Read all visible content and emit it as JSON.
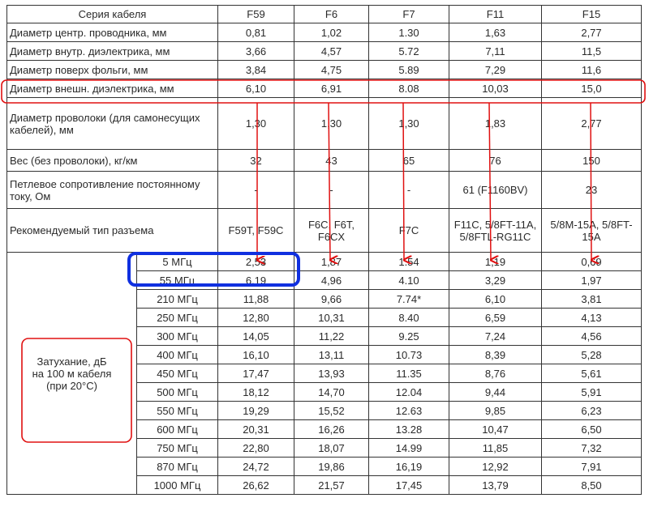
{
  "table": {
    "header": {
      "label": "Серия кабеля",
      "columns": [
        "F59",
        "F6",
        "F7",
        "F11",
        "F15"
      ]
    },
    "rows": [
      {
        "label": "Диаметр центр. проводника, мм",
        "values": [
          "0,81",
          "1,02",
          "1.30",
          "1,63",
          "2,77"
        ]
      },
      {
        "label": "Диаметр внутр. диэлектрика, мм",
        "values": [
          "3,66",
          "4,57",
          "5.72",
          "7,11",
          "11,5"
        ]
      },
      {
        "label": "Диаметр поверх фольги, мм",
        "values": [
          "3,84",
          "4,75",
          "5.89",
          "7,29",
          "11,6"
        ]
      },
      {
        "label": "Диаметр внешн. диэлектрика, мм",
        "values": [
          "6,10",
          "6,91",
          "8.08",
          "10,03",
          "15,0"
        ]
      },
      {
        "label": "Диаметр проволоки (для самонесущих кабелей), мм",
        "values": [
          "1,30",
          "1,30",
          "1,30",
          "1,83",
          "2,77"
        ]
      },
      {
        "label": "Вес (без проволоки), кг/км",
        "values": [
          "32",
          "43",
          "65",
          "76",
          "150"
        ]
      },
      {
        "label": "Петлевое сопротивление постоянному току, Ом",
        "values": [
          "-",
          "-",
          "-",
          "61 (F1160BV)",
          "23"
        ]
      },
      {
        "label": "Рекомендуемый тип разъема",
        "values": [
          "F59T, F59C",
          "F6C, F6T, F6CX",
          "F7C",
          "F11C, 5/8FT-11A, 5/8FTL-RG11C",
          "5/8M-15A, 5/8FT-15A"
        ]
      }
    ],
    "attenuation": {
      "label": "Затухание, дБ на 100 м кабеля (при 20°C)",
      "rows": [
        {
          "freq": "5 МГц",
          "values": [
            "2,53",
            "1,87",
            "1.54",
            "1,19",
            "0,69"
          ]
        },
        {
          "freq": "55 МГц",
          "values": [
            "6,19",
            "4,96",
            "4.10",
            "3,29",
            "1,97"
          ]
        },
        {
          "freq": "210 МГц",
          "values": [
            "11,88",
            "9,66",
            "7.74*",
            "6,10",
            "3,81"
          ]
        },
        {
          "freq": "250 МГц",
          "values": [
            "12,80",
            "10,31",
            "8.40",
            "6,59",
            "4,13"
          ]
        },
        {
          "freq": "300 МГц",
          "values": [
            "14,05",
            "11,22",
            "9.25",
            "7,24",
            "4,56"
          ]
        },
        {
          "freq": "400 МГц",
          "values": [
            "16,10",
            "13,11",
            "10.73",
            "8,39",
            "5,28"
          ]
        },
        {
          "freq": "450 МГц",
          "values": [
            "17,47",
            "13,93",
            "11.35",
            "8,76",
            "5,61"
          ]
        },
        {
          "freq": "500 МГц",
          "values": [
            "18,12",
            "14,70",
            "12.04",
            "9,44",
            "5,91"
          ]
        },
        {
          "freq": "550 МГц",
          "values": [
            "19,29",
            "15,52",
            "12.63",
            "9,85",
            "6,23"
          ]
        },
        {
          "freq": "600 МГц",
          "values": [
            "20,31",
            "16,26",
            "13.28",
            "10,47",
            "6,50"
          ]
        },
        {
          "freq": "750 МГц",
          "values": [
            "22,80",
            "18,07",
            "14.99",
            "11,85",
            "7,32"
          ]
        },
        {
          "freq": "870 МГц",
          "values": [
            "24,72",
            "19,86",
            "16,19",
            "12,92",
            "7,91"
          ]
        },
        {
          "freq": "1000 МГц",
          "values": [
            "26,62",
            "21,57",
            "17,45",
            "13,79",
            "8,50"
          ]
        }
      ]
    }
  },
  "annotations": {
    "red": "#e01010",
    "blue": "#1030e0"
  }
}
